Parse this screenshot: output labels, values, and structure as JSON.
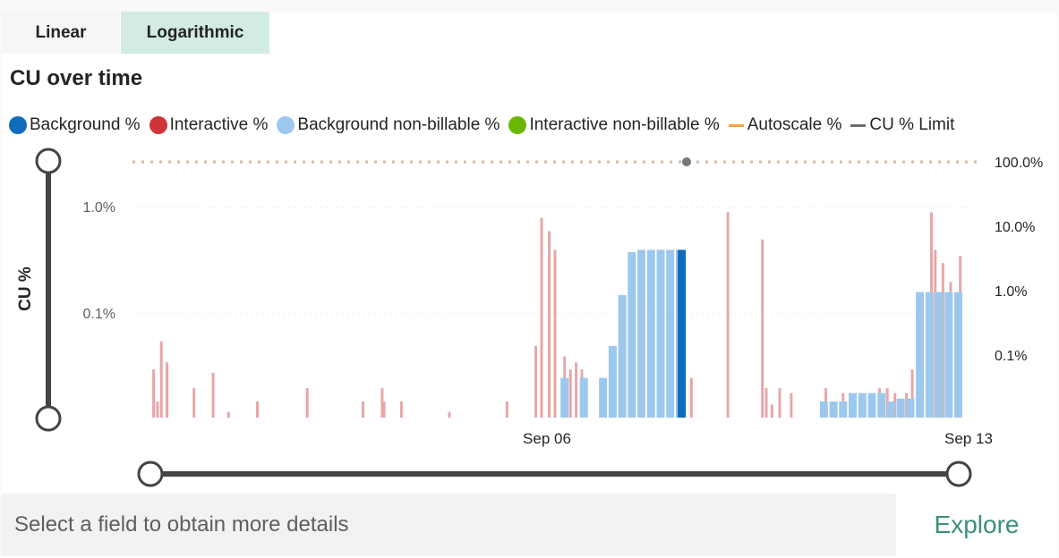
{
  "tabs": {
    "linear": "Linear",
    "logarithmic": "Logarithmic"
  },
  "title": "CU over time",
  "legend": [
    {
      "label": "Background %",
      "color": "#0f6cbd",
      "shape": "dot"
    },
    {
      "label": "Interactive %",
      "color": "#d13438",
      "shape": "dot"
    },
    {
      "label": "Background non-billable %",
      "color": "#9cc8ee",
      "shape": "dot"
    },
    {
      "label": "Interactive non-billable %",
      "color": "#6bb700",
      "shape": "dot"
    },
    {
      "label": "Autoscale %",
      "color": "#f7a541",
      "shape": "dash"
    },
    {
      "label": "CU % Limit",
      "color": "#6e6e6e",
      "shape": "dash"
    }
  ],
  "footer": {
    "text": "Select a field to obtain more details",
    "explore": "Explore"
  },
  "chart_data": {
    "type": "bar",
    "scale": "log",
    "ylabel": "CU %",
    "left_axis_ticks": [
      "1.0%",
      "0.1%"
    ],
    "right_axis_ticks": [
      "100.0%",
      "10.0%",
      "1.0%",
      "0.1%"
    ],
    "x_ticks": [
      "Sep 06",
      "Sep 13"
    ],
    "cu_limit_percent": 100,
    "series": [
      {
        "name": "Interactive %",
        "color": "#e8a6a8",
        "x": [
          1.1,
          1.3,
          1.5,
          1.8,
          3.2,
          4.2,
          5.0,
          6.5,
          9.1,
          12.0,
          13.0,
          13.1,
          14.0,
          16.5,
          19.5,
          21.0,
          21.3,
          21.7,
          22.0,
          22.5,
          22.8,
          23.1,
          23.4,
          25.0,
          27.6,
          29.1,
          31.0,
          32.8,
          33.0,
          33.3,
          33.7,
          34.3,
          36.1,
          37.0,
          38.6,
          38.9,
          39.3,
          39.7,
          40.3,
          40.6,
          41.1,
          41.4,
          41.6,
          41.8,
          42.2,
          42.6,
          43.1
        ],
        "y": [
          0.03,
          0.015,
          0.055,
          0.035,
          0.02,
          0.028,
          0.012,
          0.015,
          0.02,
          0.015,
          0.02,
          0.015,
          0.015,
          0.012,
          0.015,
          0.05,
          0.8,
          0.6,
          0.4,
          0.04,
          0.03,
          0.035,
          0.03,
          0.03,
          0.03,
          0.025,
          0.9,
          0.5,
          0.02,
          0.014,
          0.02,
          0.018,
          0.02,
          0.018,
          0.018,
          0.02,
          0.02,
          0.018,
          0.018,
          0.03,
          0.08,
          0.06,
          0.9,
          0.4,
          0.3,
          0.2,
          0.35
        ]
      },
      {
        "name": "Background non-billable %",
        "color": "#9cc8ee",
        "x": [
          22.5,
          23.5,
          24.5,
          25.0,
          25.5,
          26.0,
          26.5,
          27.0,
          27.5,
          28.0,
          28.5,
          36.0,
          36.5,
          37.0,
          37.5,
          38.0,
          38.5,
          39.0,
          39.5,
          40.0,
          40.5,
          41.0,
          41.5,
          42.0,
          42.5,
          43.0
        ],
        "y": [
          0.025,
          0.025,
          0.025,
          0.05,
          0.15,
          0.38,
          0.4,
          0.4,
          0.4,
          0.4,
          0.4,
          0.015,
          0.015,
          0.015,
          0.018,
          0.018,
          0.018,
          0.018,
          0.015,
          0.016,
          0.016,
          0.16,
          0.16,
          0.16,
          0.16,
          0.16
        ]
      },
      {
        "name": "Background %",
        "color": "#0f6cbd",
        "x": [
          28.6
        ],
        "y": [
          0.4
        ]
      }
    ]
  }
}
